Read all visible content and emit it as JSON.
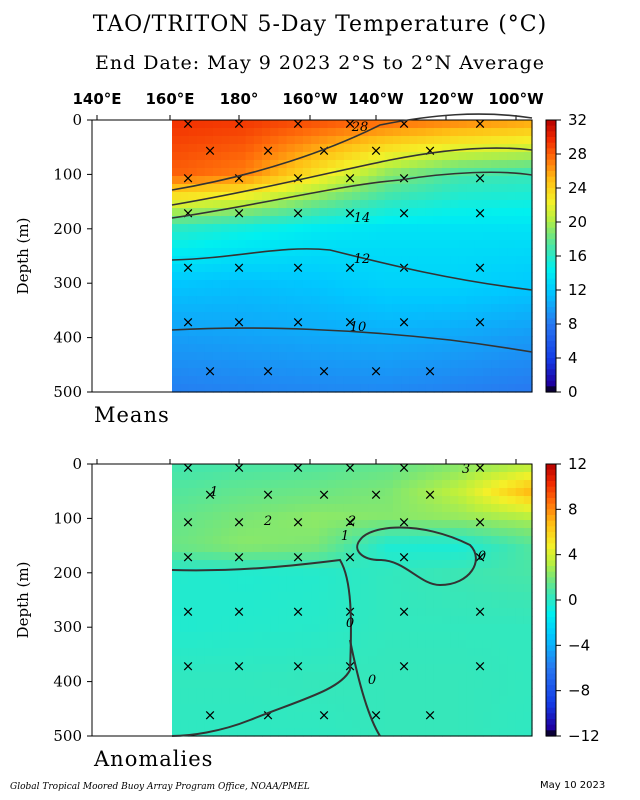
{
  "title": "TAO/TRITON 5-Day Temperature (°C)",
  "subtitle": "End Date: May 9 2023  2°S to 2°N Average",
  "footer_left": "Global Tropical Moored Buoy Array Program Office, NOAA/PMEL",
  "footer_right": "May 10 2023",
  "chart_data": [
    {
      "type": "heatmap",
      "panel_label": "Means",
      "xlabel": "",
      "ylabel": "Depth (m)",
      "x_tick_labels": [
        "140°E",
        "160°E",
        "180°",
        "160°W",
        "140°W",
        "120°W",
        "100°W"
      ],
      "y_tick_labels": [
        "0",
        "100",
        "200",
        "300",
        "400",
        "500"
      ],
      "ylim": [
        500,
        0
      ],
      "colorbar": {
        "min": 0,
        "max": 32,
        "ticks": [
          "32",
          "28",
          "24",
          "20",
          "16",
          "12",
          "8",
          "4",
          "0"
        ]
      },
      "contour_labels": [
        "28",
        "14",
        "12",
        "10"
      ],
      "longitudes": [
        "160°E",
        "180°",
        "160°W",
        "140°W",
        "120°W",
        "100°W"
      ],
      "depths": [
        0,
        100,
        200,
        300,
        400,
        500
      ],
      "values": [
        [
          29.5,
          29.3,
          28.6,
          27.8,
          27.0,
          26.0
        ],
        [
          28.0,
          27.0,
          23.0,
          19.0,
          17.0,
          16.5
        ],
        [
          16.0,
          15.0,
          14.0,
          13.5,
          13.5,
          13.5
        ],
        [
          11.8,
          11.5,
          11.8,
          12.5,
          12.5,
          12.0
        ],
        [
          9.8,
          10.0,
          10.3,
          10.5,
          10.2,
          9.6
        ],
        [
          8.3,
          8.5,
          8.7,
          8.8,
          8.4,
          8.0
        ]
      ]
    },
    {
      "type": "heatmap",
      "panel_label": "Anomalies",
      "xlabel": "",
      "ylabel": "Depth (m)",
      "y_tick_labels": [
        "0",
        "100",
        "200",
        "300",
        "400",
        "500"
      ],
      "ylim": [
        500,
        0
      ],
      "colorbar": {
        "min": -12,
        "max": 12,
        "ticks": [
          "12",
          "8",
          "4",
          "0",
          "−4",
          "−8",
          "−12"
        ]
      },
      "contour_labels": [
        "3",
        "1",
        "2",
        "2",
        "1",
        "0",
        "0",
        "0"
      ],
      "longitudes": [
        "160°E",
        "180°",
        "160°W",
        "140°W",
        "120°W",
        "100°W"
      ],
      "depths": [
        0,
        50,
        100,
        150,
        200,
        300,
        400,
        500
      ],
      "values": [
        [
          0.6,
          0.8,
          1.0,
          1.4,
          2.2,
          3.0
        ],
        [
          1.0,
          1.4,
          1.6,
          2.0,
          3.5,
          7.0
        ],
        [
          1.4,
          2.0,
          2.4,
          2.2,
          2.5,
          3.0
        ],
        [
          1.6,
          2.3,
          2.0,
          -0.4,
          -0.5,
          1.0
        ],
        [
          -0.2,
          -0.3,
          -0.2,
          0.2,
          0.5,
          0.8
        ],
        [
          -0.3,
          -0.2,
          -0.1,
          0.2,
          0.2,
          0.2
        ],
        [
          0.2,
          0.2,
          0.3,
          0.3,
          0.3,
          0.2
        ],
        [
          0.1,
          0.1,
          0.1,
          0.3,
          0.3,
          0.1
        ]
      ]
    }
  ]
}
